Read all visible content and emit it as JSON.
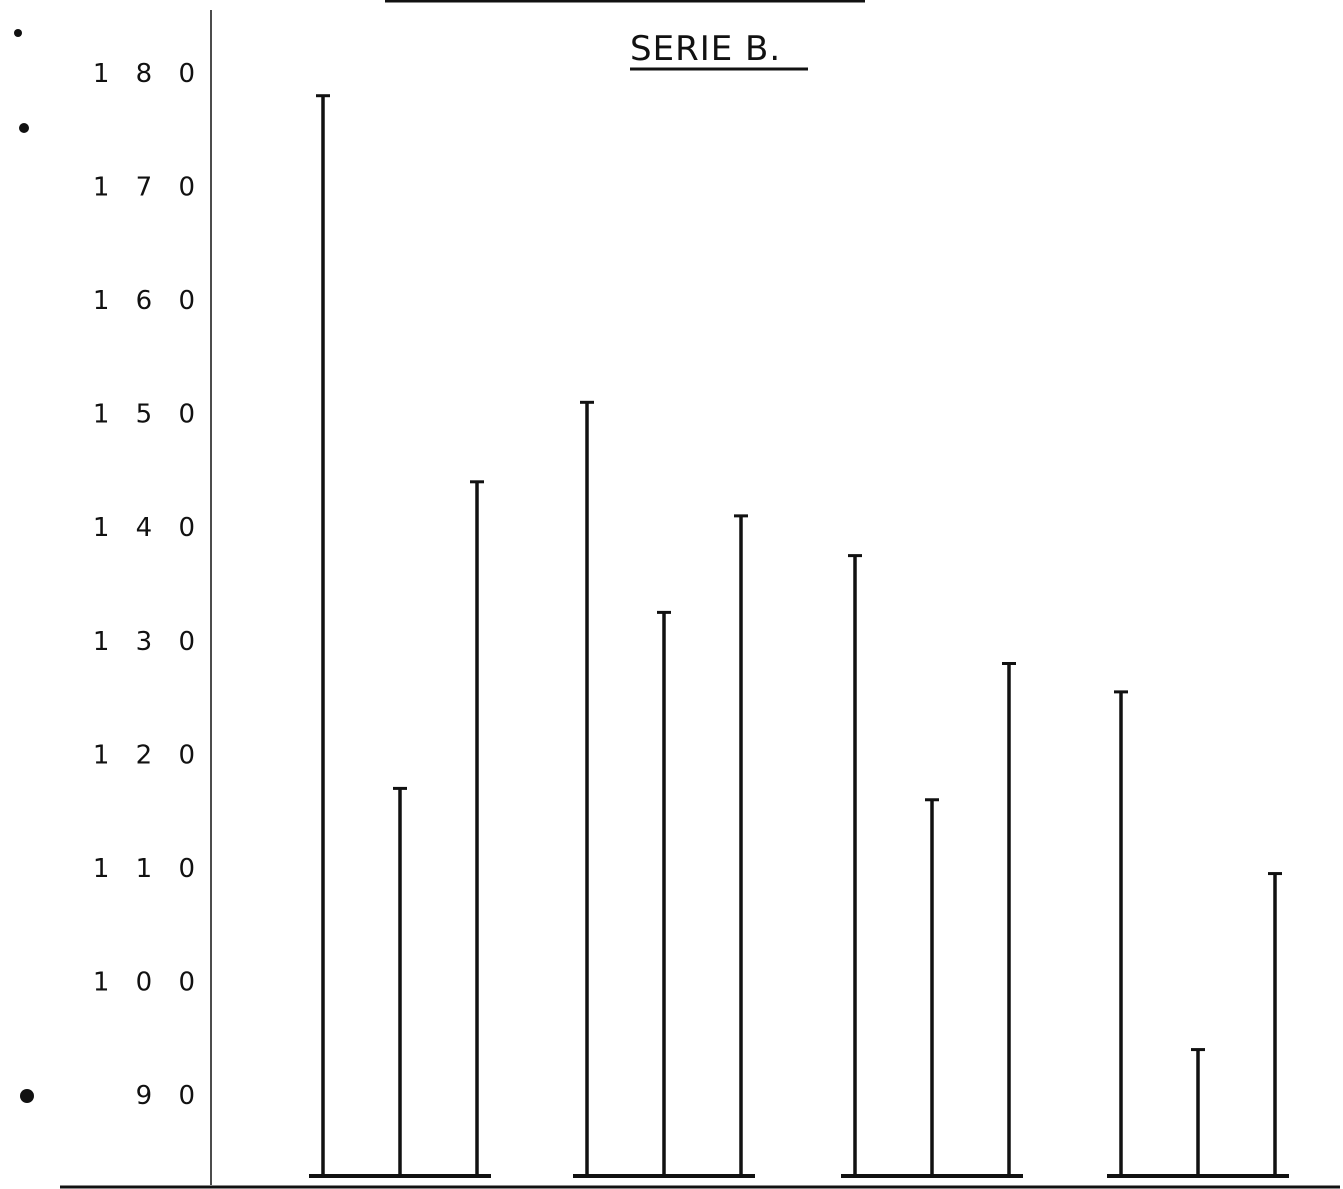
{
  "chart_data": {
    "type": "bar",
    "title": "SERIE B.",
    "xlabel": "",
    "ylabel": "",
    "ylim": [
      83,
      183
    ],
    "yticks": [
      90,
      100,
      110,
      120,
      130,
      140,
      150,
      160,
      170,
      180
    ],
    "yticklabels": [
      "9 0",
      "1 0 0",
      "1 1 0",
      "1 2 0",
      "1 3 0",
      "1 4 0",
      "1 5 0",
      "1 6 0",
      "1 7 0",
      "1 8 0"
    ],
    "grid": false,
    "legend": "none",
    "bar_style": "vertical line with short top cap, groups joined by a base line",
    "groups": [
      {
        "values": [
          178,
          117,
          144
        ]
      },
      {
        "values": [
          151,
          132.5,
          141
        ]
      },
      {
        "values": [
          137.5,
          116,
          128
        ]
      },
      {
        "values": [
          125.5,
          94,
          109.5
        ]
      }
    ]
  },
  "colors": {
    "ink": "#111111",
    "background": "#ffffff"
  }
}
